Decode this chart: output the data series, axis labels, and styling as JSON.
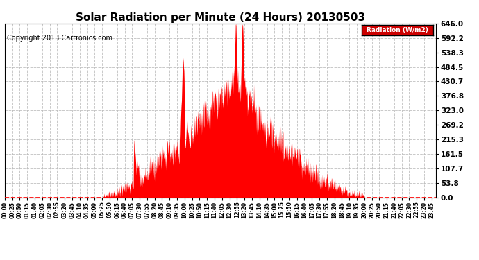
{
  "title": "Solar Radiation per Minute (24 Hours) 20130503",
  "copyright_text": "Copyright 2013 Cartronics.com",
  "legend_label": "Radiation (W/m2)",
  "yticks": [
    0.0,
    53.8,
    107.7,
    161.5,
    215.3,
    269.2,
    323.0,
    376.8,
    430.7,
    484.5,
    538.3,
    592.2,
    646.0
  ],
  "ymax": 646.0,
  "fill_color": "#ff0000",
  "bg_color": "#ffffff",
  "grid_color": "#bbbbbb",
  "zero_line_color": "#ff0000",
  "title_fontsize": 11,
  "copyright_fontsize": 7,
  "legend_bg": "#cc0000",
  "legend_text_color": "#ffffff"
}
